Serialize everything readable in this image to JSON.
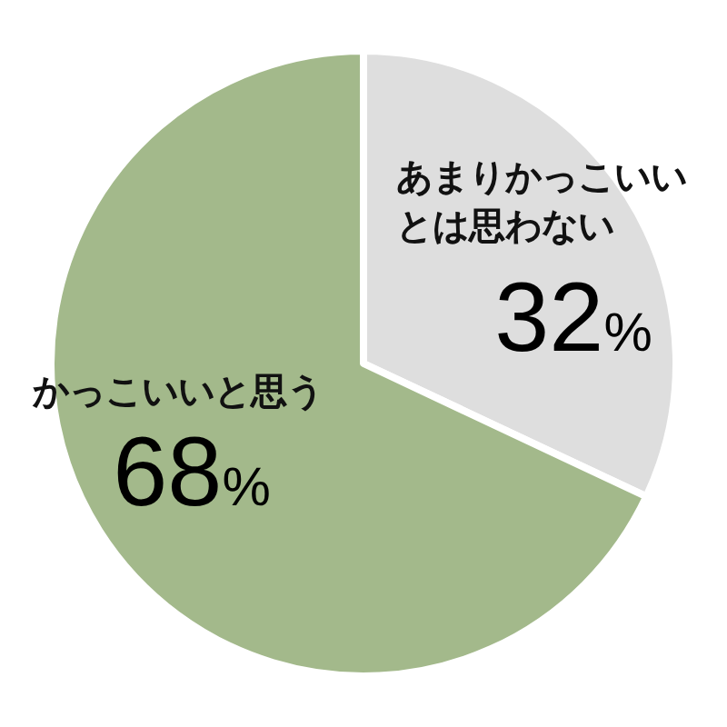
{
  "chart_data": {
    "type": "pie",
    "categories": [
      "あまりかっこいいとは思わない",
      "かっこいいと思う"
    ],
    "values": [
      32,
      68
    ],
    "colors": [
      "#dedede",
      "#a3b98b"
    ],
    "value_labels": [
      "32%",
      "68%"
    ],
    "legend": false
  }
}
